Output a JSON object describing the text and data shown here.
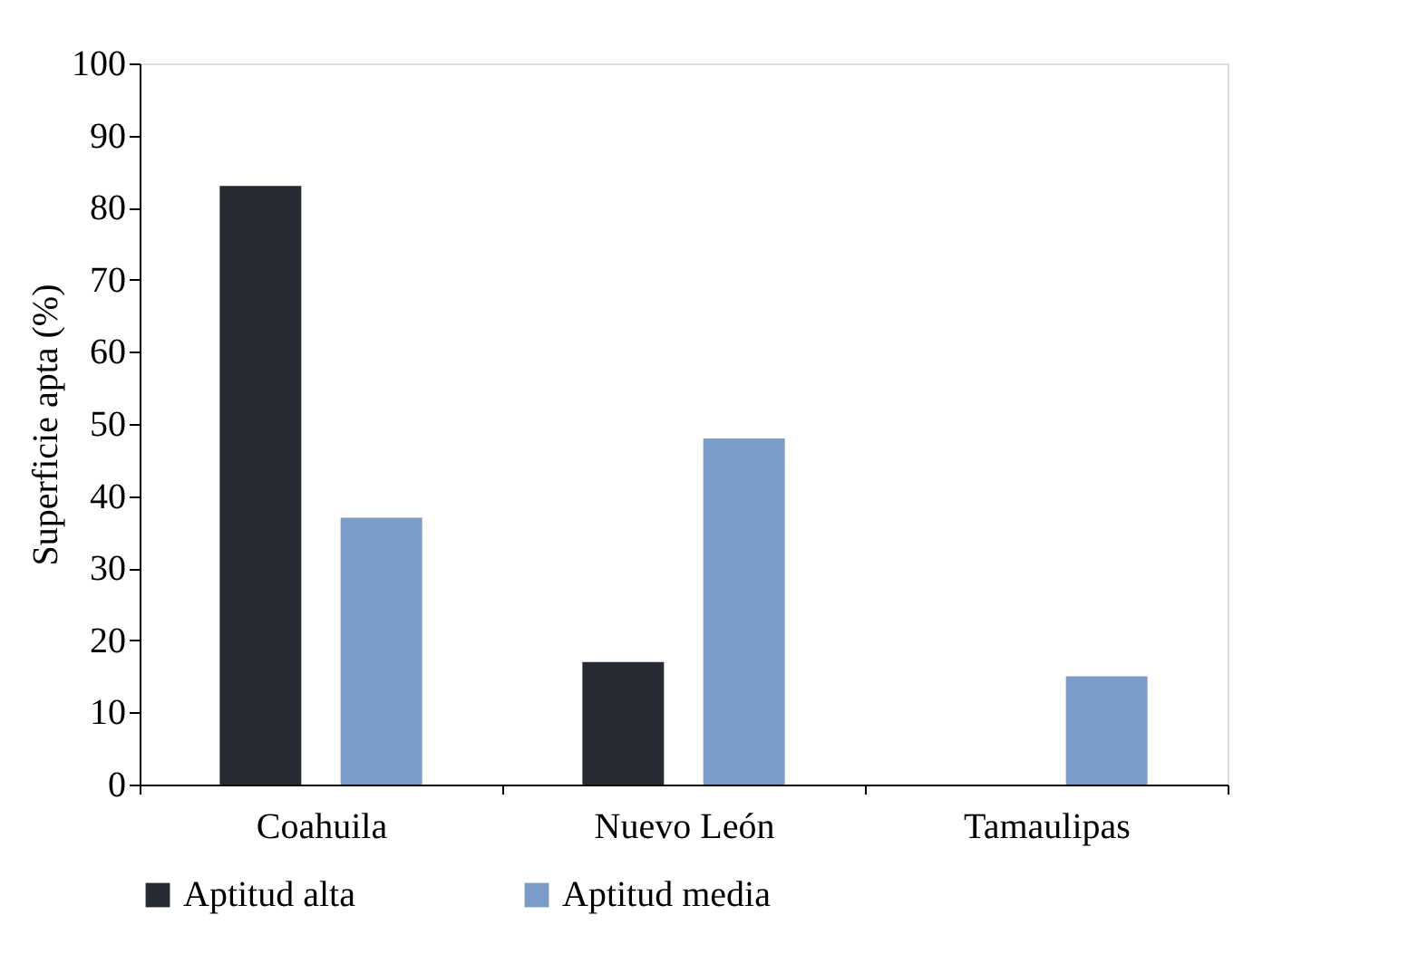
{
  "chart_data": {
    "type": "bar",
    "ylabel": "Superficie  apta (%)",
    "categories": [
      "Coahuila",
      "Nuevo León",
      "Tamaulipas"
    ],
    "series": [
      {
        "name": "Aptitud alta",
        "color": "#252a33",
        "values": [
          83,
          17,
          0
        ]
      },
      {
        "name": "Aptitud media",
        "color": "#7a9cc8",
        "values": [
          37,
          48,
          15
        ]
      }
    ],
    "ylim": [
      0,
      100
    ],
    "yticks": [
      0,
      10,
      20,
      30,
      40,
      50,
      60,
      70,
      80,
      90,
      100
    ],
    "grid": false,
    "legend": "bottom"
  }
}
